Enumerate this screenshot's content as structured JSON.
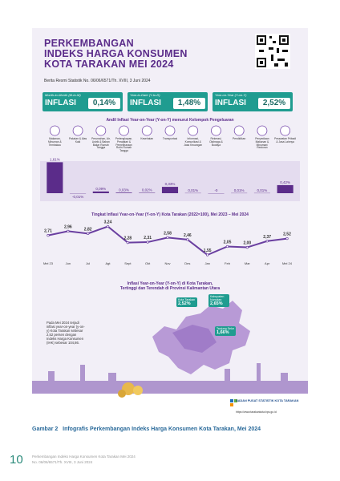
{
  "infographic": {
    "title_lines": [
      "PERKEMBANGAN",
      "INDEKS HARGA KONSUMEN",
      "KOTA TARAKAN MEI 2024"
    ],
    "subtitle": "Berita Resmi Statistik No. 06/06/6571/Th. XVIII, 3 Juni 2024",
    "cards": [
      {
        "header": "Month-to-Month (M-to-M)",
        "label": "INFLASI",
        "value": "0,14%"
      },
      {
        "header": "Year-to-Date (Y-to-D)",
        "label": "INFLASI",
        "value": "1,48%"
      },
      {
        "header": "Year-on-Year (Y-on-Y)",
        "label": "INFLASI",
        "value": "2,52%"
      }
    ],
    "bar_chart": {
      "type": "bar",
      "title": "Andil Inflasi Year-on-Year (Y-on-Y) menurut Kelompok Pengeluaran",
      "categories": [
        "Makanan, Minuman & Tembakau",
        "Pakaian & Alas Kaki",
        "Perumahan, Air, Listrik & Bahan Bakar Rumah Tangga",
        "Perlengkapan, Peralatan & Pemeliharaan Rutin Rumah Tangga",
        "Kesehatan",
        "Transportasi",
        "Informasi, Komunikasi & Jasa Keuangan",
        "Rekreasi, Olahraga & Budaya",
        "Pendidikan",
        "Penyediaan Makanan & Minuman/ Restoran",
        "Perawatan Pribadi & Jasa Lainnya"
      ],
      "values": [
        1.61,
        -0.01,
        0.09,
        0.03,
        0.02,
        0.33,
        0.01,
        0,
        0.01,
        0.01,
        0.42
      ],
      "value_labels": [
        "1,61%",
        "-0,01%",
        "0,09%",
        "0,03%",
        "0,02%",
        "0,33%",
        "0,01%",
        "-0",
        "0,01%",
        "0,01%",
        "0,42%"
      ],
      "color": "#5b2c8a"
    },
    "line_chart": {
      "type": "line",
      "title": "Tingkat Inflasi Year-on-Year (Y-on-Y) Kota Tarakan (2022=100), Mei 2023 – Mei 2024",
      "categories": [
        "Mei 23",
        "Jun",
        "Jul",
        "Agt",
        "Sept",
        "Okt",
        "Nov",
        "Des",
        "Jan",
        "Feb",
        "Mar",
        "Apr",
        "Mei 24"
      ],
      "values": [
        2.71,
        2.96,
        2.82,
        3.24,
        2.28,
        2.31,
        2.58,
        2.46,
        1.55,
        2.05,
        2.0,
        2.37,
        2.52
      ],
      "value_labels": [
        "2,71",
        "2,96",
        "2,82",
        "3,24",
        "2,28",
        "2,31",
        "2,58",
        "2,46",
        "1,55",
        "2,05",
        "2,00",
        "2,37",
        "2,52"
      ],
      "color": "#6a3fa0"
    },
    "map": {
      "title_lines": [
        "Inflasi Year-on-Year (Y-on-Y) di Kota Tarakan,",
        "Tertinggi dan Terendah di Provinsi Kalimantan Utara"
      ],
      "text": "Pada Mei 2024 terjadi inflasi year-on-year (y-on-y) Kota Tarakan sebesar 2,52 persen dengan Indeks Harga Konsumen (IHK) sebesar 104,86.",
      "labels": [
        {
          "name": "Kota Tarakan",
          "value": "2,52%"
        },
        {
          "name": "Kabupaten Nunukan",
          "value": "2,65%"
        },
        {
          "name": "Tanjung Selor",
          "value": "1,66%"
        }
      ]
    },
    "footer": {
      "org": "BADAN PUSAT STATISTIK KOTA TARAKAN",
      "url": "https://www.tarakankota.bps.go.id"
    }
  },
  "caption": "Gambar 2   Infografis Perkembangan Indeks Harga Konsumen Kota Tarakan, Mei 2024",
  "page_footer": {
    "number": "10",
    "line1": "Perkembangan Indeks Harga Konsumen Kota Tarakan Mei 2024",
    "line2": "No. 06/06/6571/Th. XVIII, 3 Juni 2024"
  }
}
